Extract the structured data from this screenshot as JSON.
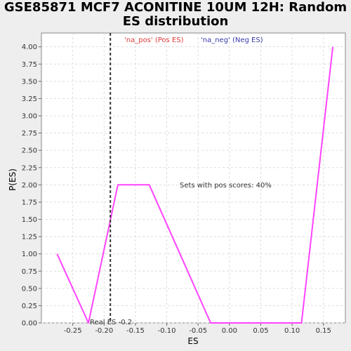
{
  "chart_data": {
    "type": "line",
    "title_lines": [
      "GSE85871 MCF7 ACONITINE 10UM 12H: Random",
      "ES distribution"
    ],
    "xlabel": "ES",
    "ylabel": "P(ES)",
    "xlim": [
      -0.3,
      0.185
    ],
    "ylim": [
      0,
      4.2
    ],
    "x_ticks": [
      -0.25,
      -0.2,
      -0.15,
      -0.1,
      -0.05,
      0.0,
      0.05,
      0.1,
      0.15
    ],
    "x_tick_labels": [
      "-0.25",
      "-0.20",
      "-0.15",
      "-0.10",
      "-0.05",
      "0.00",
      "0.05",
      "0.10",
      "0.15"
    ],
    "y_ticks": [
      0,
      0.25,
      0.5,
      0.75,
      1.0,
      1.25,
      1.5,
      1.75,
      2.0,
      2.25,
      2.5,
      2.75,
      3.0,
      3.25,
      3.5,
      3.75,
      4.0
    ],
    "y_tick_labels": [
      "0.00",
      "0.25",
      "0.50",
      "0.75",
      "1.00",
      "1.25",
      "1.50",
      "1.75",
      "2.00",
      "2.25",
      "2.50",
      "2.75",
      "3.00",
      "3.25",
      "3.50",
      "3.75",
      "4.00"
    ],
    "grid": true,
    "series": [
      {
        "color": "#ff44ff",
        "x": [
          -0.275,
          -0.225,
          -0.178,
          -0.128,
          -0.03,
          0.115,
          0.165
        ],
        "y": [
          1.0,
          0.0,
          2.0,
          2.0,
          0.0,
          0.0,
          4.0
        ]
      }
    ],
    "vline": {
      "x": -0.19,
      "color": "#333333"
    },
    "legend": [
      {
        "label": "'na_pos' (Pos ES)",
        "color": "#e03a3a"
      },
      {
        "label": "'na_neg' (Neg ES)",
        "color": "#3a3aa8"
      }
    ],
    "legend_position": "top",
    "annotations": {
      "pos_scores": "Sets with pos scores: 40%",
      "real_es": "Real ES -0.2"
    }
  }
}
